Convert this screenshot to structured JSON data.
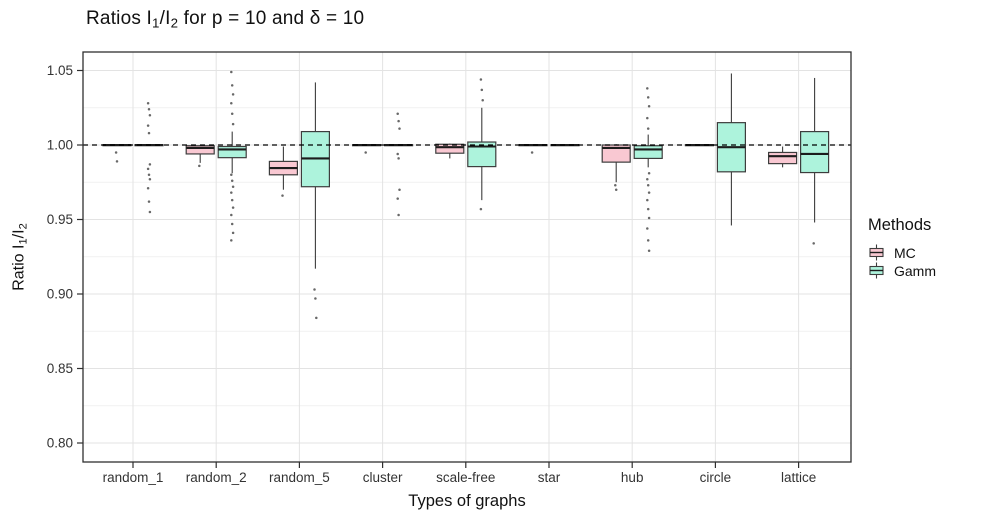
{
  "title": {
    "part1": "Ratios I",
    "sub1": "1",
    "part2": "/I",
    "sub2": "2",
    "part3": " for p = 10 and δ = 10"
  },
  "y_axis": {
    "label_part1": "Ratio I",
    "label_sub1": "1",
    "label_part2": "/I",
    "label_sub2": "2"
  },
  "x_axis": {
    "title": "Types of graphs"
  },
  "legend": {
    "title": "Methods",
    "items": [
      {
        "label": "MC",
        "color": "#F9C8D2"
      },
      {
        "label": "Gamm",
        "color": "#ADF3DC"
      }
    ]
  },
  "colors": {
    "mc_fill": "#F9C8D2",
    "gamm_fill": "#ADF3DC",
    "box_stroke": "#3d3d3d",
    "median": "#1c1c1c",
    "outlier": "#4d4d4d",
    "grid_major": "#e3e3e3",
    "grid_minor": "#f1f1f1",
    "panel_border": "#2f2f2f",
    "tick_text": "#333333",
    "reference_line": "#000000"
  },
  "chart_data": {
    "type": "boxplot",
    "title": "Ratios I₁/I₂ for p = 10 and δ = 10",
    "xlabel": "Types of graphs",
    "ylabel": "Ratio I₁/I₂",
    "legend_title": "Methods",
    "legend_position": "right",
    "grid": true,
    "reference_line": 1.0,
    "ylim": [
      0.787,
      1.062
    ],
    "yticks": [
      {
        "value": 1.05,
        "label": "1.05"
      },
      {
        "value": 1.0,
        "label": "1.00"
      },
      {
        "value": 0.95,
        "label": "0.95"
      },
      {
        "value": 0.9,
        "label": "0.90"
      },
      {
        "value": 0.85,
        "label": "0.85"
      },
      {
        "value": 0.8,
        "label": "0.80"
      }
    ],
    "y_minor": [
      1.025,
      0.975,
      0.925,
      0.875,
      0.825
    ],
    "categories": [
      "random_1",
      "random_2",
      "random_5",
      "cluster",
      "scale-free",
      "star",
      "hub",
      "circle",
      "lattice"
    ],
    "series": [
      {
        "name": "MC",
        "fill": "#F9C8D2",
        "boxes": [
          {
            "lo": 0.9995,
            "q1": 0.9998,
            "med": 1.0,
            "q3": 1.0002,
            "hi": 1.0005,
            "out": [
              0.995,
              0.989
            ]
          },
          {
            "lo": 0.988,
            "q1": 0.994,
            "med": 0.998,
            "q3": 0.9995,
            "hi": 1.0,
            "out": [
              0.986
            ]
          },
          {
            "lo": 0.97,
            "q1": 0.98,
            "med": 0.9845,
            "q3": 0.989,
            "hi": 0.999,
            "out": [
              0.966
            ]
          },
          {
            "lo": 0.9995,
            "q1": 0.9998,
            "med": 1.0,
            "q3": 1.0002,
            "hi": 1.0005,
            "out": [
              0.995
            ]
          },
          {
            "lo": 0.991,
            "q1": 0.9945,
            "med": 0.9985,
            "q3": 1.0005,
            "hi": 1.001,
            "out": []
          },
          {
            "lo": 0.9995,
            "q1": 0.9998,
            "med": 1.0,
            "q3": 1.0002,
            "hi": 1.0005,
            "out": [
              0.995
            ]
          },
          {
            "lo": 0.975,
            "q1": 0.9885,
            "med": 0.998,
            "q3": 1.0,
            "hi": 1.0005,
            "out": [
              0.973,
              0.97
            ]
          },
          {
            "lo": 0.9995,
            "q1": 0.9998,
            "med": 1.0,
            "q3": 1.0002,
            "hi": 1.0005,
            "out": []
          },
          {
            "lo": 0.985,
            "q1": 0.9875,
            "med": 0.9925,
            "q3": 0.995,
            "hi": 0.999,
            "out": []
          }
        ]
      },
      {
        "name": "Gamm",
        "fill": "#ADF3DC",
        "boxes": [
          {
            "lo": 0.9995,
            "q1": 0.9998,
            "med": 1.0,
            "q3": 1.0002,
            "hi": 1.0005,
            "out": [
              1.028,
              1.024,
              1.02,
              1.013,
              1.008,
              0.987,
              0.984,
              0.98,
              0.977,
              0.971,
              0.962,
              0.955
            ]
          },
          {
            "lo": 0.981,
            "q1": 0.9915,
            "med": 0.997,
            "q3": 0.999,
            "hi": 1.009,
            "out": [
              1.049,
              1.04,
              1.034,
              1.028,
              1.021,
              1.014,
              0.98,
              0.976,
              0.972,
              0.968,
              0.963,
              0.958,
              0.953,
              0.947,
              0.941,
              0.936
            ]
          },
          {
            "lo": 0.917,
            "q1": 0.972,
            "med": 0.991,
            "q3": 1.009,
            "hi": 1.042,
            "out": [
              0.903,
              0.897,
              0.884
            ]
          },
          {
            "lo": 0.9995,
            "q1": 0.9998,
            "med": 1.0,
            "q3": 1.0002,
            "hi": 1.0005,
            "out": [
              1.021,
              1.016,
              1.011,
              0.994,
              0.991,
              0.97,
              0.964,
              0.953
            ]
          },
          {
            "lo": 0.963,
            "q1": 0.9855,
            "med": 0.999,
            "q3": 1.002,
            "hi": 1.025,
            "out": [
              1.044,
              1.037,
              1.03,
              0.957
            ]
          },
          {
            "lo": 0.9995,
            "q1": 0.9998,
            "med": 1.0,
            "q3": 1.0002,
            "hi": 1.0005,
            "out": []
          },
          {
            "lo": 0.985,
            "q1": 0.991,
            "med": 0.997,
            "q3": 0.9995,
            "hi": 1.007,
            "out": [
              1.038,
              1.032,
              1.026,
              1.018,
              1.011,
              0.981,
              0.977,
              0.973,
              0.968,
              0.963,
              0.957,
              0.951,
              0.944,
              0.936,
              0.929
            ]
          },
          {
            "lo": 0.946,
            "q1": 0.982,
            "med": 0.9985,
            "q3": 1.015,
            "hi": 1.048,
            "out": []
          },
          {
            "lo": 0.948,
            "q1": 0.9815,
            "med": 0.994,
            "q3": 1.009,
            "hi": 1.045,
            "out": [
              0.934
            ]
          }
        ]
      }
    ]
  }
}
